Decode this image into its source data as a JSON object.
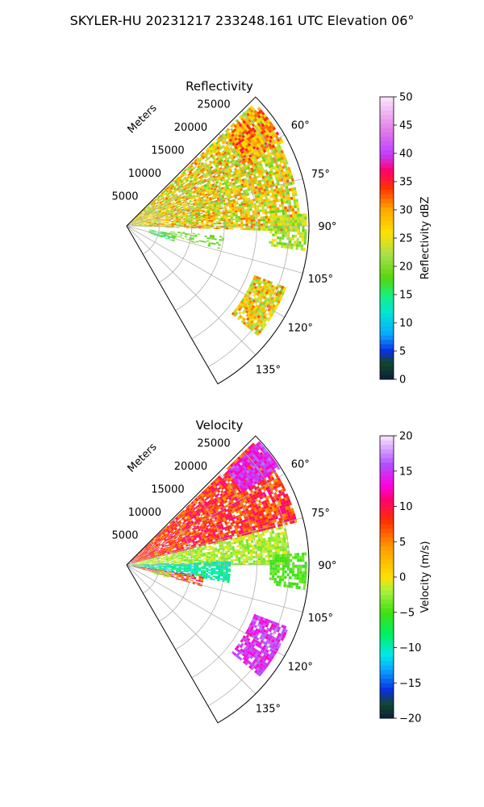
{
  "figure_title": "SKYLER-HU  20231217  233248.161 UTC Elevation 06°",
  "chart_data": [
    {
      "type": "heatmap",
      "subtitle": "Reflectivity",
      "projection": "polar-sector",
      "azimuth_range_deg": [
        45,
        150
      ],
      "azimuth_tick_labels": [
        "60°",
        "75°",
        "90°",
        "105°",
        "120°",
        "135°"
      ],
      "azimuth_ticks": [
        60,
        75,
        90,
        105,
        120,
        135
      ],
      "range_label": "Meters",
      "range_max": 28000,
      "range_tick_labels": [
        "5000",
        "10000",
        "15000",
        "20000",
        "25000"
      ],
      "range_ticks": [
        5000,
        10000,
        15000,
        20000,
        25000
      ],
      "grid": true,
      "colorbar": {
        "label": "Reflectivity dBZ",
        "range": [
          0,
          50
        ],
        "tick_labels": [
          "0",
          "5",
          "10",
          "15",
          "20",
          "25",
          "30",
          "35",
          "40",
          "45",
          "50"
        ],
        "stops": [
          {
            "v": 0,
            "c": "#0b1f3c"
          },
          {
            "v": 3,
            "c": "#12482c"
          },
          {
            "v": 5,
            "c": "#0a2ee0"
          },
          {
            "v": 8,
            "c": "#0aa9ff"
          },
          {
            "v": 12,
            "c": "#00e8d0"
          },
          {
            "v": 15,
            "c": "#18f07a"
          },
          {
            "v": 18,
            "c": "#56d60a"
          },
          {
            "v": 22,
            "c": "#a8e04a"
          },
          {
            "v": 26,
            "c": "#ffe000"
          },
          {
            "v": 30,
            "c": "#ffa800"
          },
          {
            "v": 34,
            "c": "#ff3000"
          },
          {
            "v": 37,
            "c": "#ff0070"
          },
          {
            "v": 40,
            "c": "#c040ff"
          },
          {
            "v": 44,
            "c": "#e07ae8"
          },
          {
            "v": 50,
            "c": "#fbe6fb"
          }
        ]
      },
      "echo_regions": [
        {
          "name": "main-band",
          "az": [
            46,
            92
          ],
          "r": [
            800,
            26500
          ],
          "value_min": 18,
          "value_max": 33,
          "density": 0.85
        },
        {
          "name": "far-core",
          "az": [
            48,
            62
          ],
          "r": [
            20500,
            27000
          ],
          "value_min": 24,
          "value_max": 36,
          "density": 0.9
        },
        {
          "name": "east-cell",
          "az": [
            86,
            98
          ],
          "r": [
            22000,
            27500
          ],
          "value_min": 18,
          "value_max": 26,
          "density": 0.75
        },
        {
          "name": "near-south",
          "az": [
            99,
            108
          ],
          "r": [
            3500,
            7500
          ],
          "value_min": 14,
          "value_max": 19,
          "density": 0.7
        },
        {
          "name": "mid-south",
          "az": [
            96,
            104
          ],
          "r": [
            6000,
            15000
          ],
          "value_min": 17,
          "value_max": 22,
          "density": 0.35
        },
        {
          "name": "south-cell",
          "az": [
            111,
            130
          ],
          "r": [
            21000,
            26000
          ],
          "value_min": 19,
          "value_max": 33,
          "density": 0.8
        }
      ]
    },
    {
      "type": "heatmap",
      "subtitle": "Velocity",
      "projection": "polar-sector",
      "azimuth_range_deg": [
        45,
        150
      ],
      "azimuth_tick_labels": [
        "60°",
        "75°",
        "90°",
        "105°",
        "120°",
        "135°"
      ],
      "azimuth_ticks": [
        60,
        75,
        90,
        105,
        120,
        135
      ],
      "range_label": "Meters",
      "range_max": 28000,
      "range_tick_labels": [
        "5000",
        "10000",
        "15000",
        "20000",
        "25000"
      ],
      "range_ticks": [
        5000,
        10000,
        15000,
        20000,
        25000
      ],
      "grid": true,
      "colorbar": {
        "label": "Velocity (m/s)",
        "range": [
          -20,
          20
        ],
        "tick_labels": [
          "−20",
          "−15",
          "−10",
          "−5",
          "0",
          "5",
          "10",
          "15",
          "20"
        ],
        "stops": [
          {
            "v": -20,
            "c": "#0b1f3c"
          },
          {
            "v": -18,
            "c": "#12482c"
          },
          {
            "v": -16,
            "c": "#0a2ee0"
          },
          {
            "v": -13,
            "c": "#0aa9ff"
          },
          {
            "v": -11,
            "c": "#00e8e8"
          },
          {
            "v": -8,
            "c": "#00f060"
          },
          {
            "v": -5,
            "c": "#40e010"
          },
          {
            "v": -2,
            "c": "#a8f040"
          },
          {
            "v": 0,
            "c": "#ffe000"
          },
          {
            "v": 4,
            "c": "#ffa000"
          },
          {
            "v": 8,
            "c": "#ff3000"
          },
          {
            "v": 11,
            "c": "#ff0070"
          },
          {
            "v": 13,
            "c": "#ff00e0"
          },
          {
            "v": 16,
            "c": "#b050ff"
          },
          {
            "v": 20,
            "c": "#fbe6fb"
          }
        ]
      },
      "echo_regions": [
        {
          "name": "receding-north",
          "az": [
            46,
            76
          ],
          "r": [
            800,
            27000
          ],
          "value_min": 4,
          "value_max": 12,
          "density": 0.88
        },
        {
          "name": "far-north-core",
          "az": [
            47,
            58
          ],
          "r": [
            21000,
            27500
          ],
          "value_min": 12,
          "value_max": 17,
          "density": 0.9
        },
        {
          "name": "mid-band",
          "az": [
            76,
            90
          ],
          "r": [
            800,
            25000
          ],
          "value_min": -4,
          "value_max": 0,
          "density": 0.8
        },
        {
          "name": "east-cell",
          "az": [
            86,
            98
          ],
          "r": [
            22000,
            27500
          ],
          "value_min": -6,
          "value_max": -3,
          "density": 0.7
        },
        {
          "name": "approaching",
          "az": [
            88,
            100
          ],
          "r": [
            800,
            16000
          ],
          "value_min": -12,
          "value_max": -7,
          "density": 0.8
        },
        {
          "name": "near-south-warm",
          "az": [
            98,
            106
          ],
          "r": [
            1000,
            12000
          ],
          "value_min": 3,
          "value_max": 13,
          "density": 0.7
        },
        {
          "name": "near-south-green",
          "az": [
            100,
            108
          ],
          "r": [
            4000,
            7000
          ],
          "value_min": -3,
          "value_max": -1,
          "density": 0.65
        },
        {
          "name": "south-cell",
          "az": [
            111,
            130
          ],
          "r": [
            21000,
            26500
          ],
          "value_min": 12,
          "value_max": 17,
          "density": 0.82
        }
      ]
    }
  ]
}
